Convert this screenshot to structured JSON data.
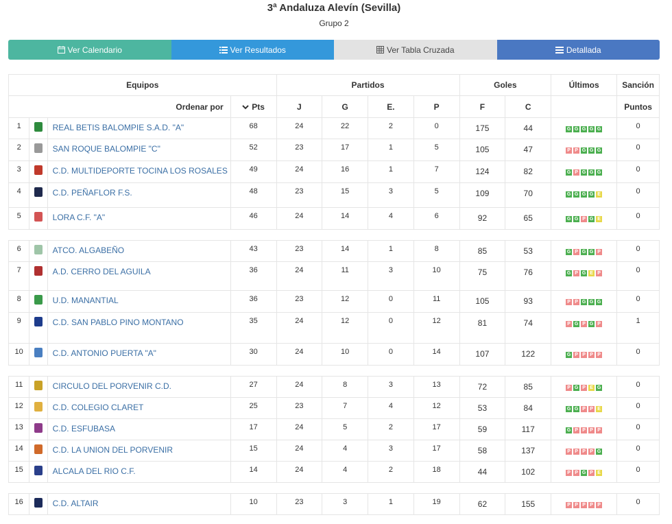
{
  "header": {
    "title": "3ª Andaluza Alevín (Sevilla)",
    "subtitle": "Grupo 2"
  },
  "buttons": [
    {
      "label": "Ver Calendario",
      "icon": "calendar-icon"
    },
    {
      "label": "Ver Resultados",
      "icon": "list-icon"
    },
    {
      "label": "Ver Tabla Cruzada",
      "icon": "grid-icon"
    },
    {
      "label": "Detallada",
      "icon": "detail-list-icon"
    }
  ],
  "table": {
    "groups": {
      "equipos": "Equipos",
      "partidos": "Partidos",
      "goles": "Goles",
      "ultimos": "Últimos",
      "sancion": "Sanción"
    },
    "cols": {
      "ordenar": "Ordenar por",
      "pts": "Pts",
      "j": "J",
      "g": "G",
      "e": "E.",
      "p": "P",
      "f": "F",
      "c": "C",
      "puntos": "Puntos"
    },
    "rows": [
      {
        "pos": "1",
        "team": "REAL BETIS BALOMPIE S.A.D. \"A\"",
        "pts": "68",
        "j": "24",
        "g": "22",
        "e": "2",
        "p": "0",
        "f": "175",
        "c": "44",
        "last": [
          "G",
          "G",
          "G",
          "G",
          "G"
        ],
        "san": "0",
        "crest": "#2e8b3e"
      },
      {
        "pos": "2",
        "team": "SAN ROQUE BALOMPIE \"C\"",
        "pts": "52",
        "j": "23",
        "g": "17",
        "e": "1",
        "p": "5",
        "f": "105",
        "c": "47",
        "last": [
          "P",
          "P",
          "G",
          "G",
          "G"
        ],
        "san": "0",
        "crest": "#999999"
      },
      {
        "pos": "3",
        "team": "C.D. MULTIDEPORTE TOCINA LOS ROSALES",
        "pts": "49",
        "j": "24",
        "g": "16",
        "e": "1",
        "p": "7",
        "f": "124",
        "c": "82",
        "last": [
          "G",
          "P",
          "G",
          "G",
          "G"
        ],
        "san": "0",
        "crest": "#c0392b"
      },
      {
        "pos": "4",
        "team": "C.D. PEÑAFLOR F.S.",
        "pts": "48",
        "j": "23",
        "g": "15",
        "e": "3",
        "p": "5",
        "f": "109",
        "c": "70",
        "last": [
          "G",
          "G",
          "G",
          "G",
          "E"
        ],
        "san": "0",
        "crest": "#1f2a4d"
      },
      {
        "pos": "5",
        "team": "LORA C.F. \"A\"",
        "pts": "46",
        "j": "24",
        "g": "14",
        "e": "4",
        "p": "6",
        "f": "92",
        "c": "65",
        "last": [
          "G",
          "G",
          "P",
          "G",
          "E"
        ],
        "san": "0",
        "crest": "#d35454"
      },
      {
        "sep": true
      },
      {
        "pos": "6",
        "team": "ATCO. ALGABEÑO",
        "pts": "43",
        "j": "23",
        "g": "14",
        "e": "1",
        "p": "8",
        "f": "85",
        "c": "53",
        "last": [
          "G",
          "P",
          "G",
          "G",
          "P"
        ],
        "san": "0",
        "crest": "#9fc5a8"
      },
      {
        "pos": "7",
        "team": "A.D. CERRO DEL AGUILA",
        "pts": "36",
        "j": "24",
        "g": "11",
        "e": "3",
        "p": "10",
        "f": "75",
        "c": "76",
        "last": [
          "G",
          "P",
          "G",
          "E",
          "P"
        ],
        "san": "0",
        "crest": "#b03030"
      },
      {
        "pos": "8",
        "team": "U.D. MANANTIAL",
        "pts": "36",
        "j": "23",
        "g": "12",
        "e": "0",
        "p": "11",
        "f": "105",
        "c": "93",
        "last": [
          "P",
          "P",
          "G",
          "G",
          "G"
        ],
        "san": "0",
        "crest": "#3a9a4a"
      },
      {
        "pos": "9",
        "team": "C.D. SAN PABLO PINO MONTANO",
        "pts": "35",
        "j": "24",
        "g": "12",
        "e": "0",
        "p": "12",
        "f": "81",
        "c": "74",
        "last": [
          "P",
          "G",
          "P",
          "G",
          "P"
        ],
        "san": "1",
        "crest": "#1e3c8c"
      },
      {
        "pos": "10",
        "team": "C.D. ANTONIO PUERTA \"A\"",
        "pts": "30",
        "j": "24",
        "g": "10",
        "e": "0",
        "p": "14",
        "f": "107",
        "c": "122",
        "last": [
          "G",
          "P",
          "P",
          "P",
          "P"
        ],
        "san": "0",
        "crest": "#4a7fc1"
      },
      {
        "sep": true
      },
      {
        "pos": "11",
        "team": "CIRCULO DEL PORVENIR C.D.",
        "pts": "27",
        "j": "24",
        "g": "8",
        "e": "3",
        "p": "13",
        "f": "72",
        "c": "85",
        "last": [
          "P",
          "G",
          "P",
          "E",
          "G"
        ],
        "san": "0",
        "crest": "#c9a227"
      },
      {
        "pos": "12",
        "team": "C.D. COLEGIO CLARET",
        "pts": "25",
        "j": "23",
        "g": "7",
        "e": "4",
        "p": "12",
        "f": "53",
        "c": "84",
        "last": [
          "G",
          "G",
          "P",
          "P",
          "E"
        ],
        "san": "0",
        "crest": "#e0b040"
      },
      {
        "pos": "13",
        "team": "C.D. ESFUBASA",
        "pts": "17",
        "j": "24",
        "g": "5",
        "e": "2",
        "p": "17",
        "f": "59",
        "c": "117",
        "last": [
          "G",
          "P",
          "P",
          "P",
          "P"
        ],
        "san": "0",
        "crest": "#8e3b8a"
      },
      {
        "pos": "14",
        "team": "C.D. LA UNION DEL PORVENIR",
        "pts": "15",
        "j": "24",
        "g": "4",
        "e": "3",
        "p": "17",
        "f": "58",
        "c": "137",
        "last": [
          "P",
          "P",
          "P",
          "P",
          "G"
        ],
        "san": "0",
        "crest": "#d06a2a"
      },
      {
        "pos": "15",
        "team": "ALCALA DEL RIO C.F.",
        "pts": "14",
        "j": "24",
        "g": "4",
        "e": "2",
        "p": "18",
        "f": "44",
        "c": "102",
        "last": [
          "P",
          "P",
          "G",
          "P",
          "E"
        ],
        "san": "0",
        "crest": "#2a3f8a"
      },
      {
        "sep": true
      },
      {
        "pos": "16",
        "team": "C.D. ALTAIR",
        "pts": "10",
        "j": "23",
        "g": "3",
        "e": "1",
        "p": "19",
        "f": "62",
        "c": "155",
        "last": [
          "P",
          "P",
          "P",
          "P",
          "P"
        ],
        "san": "0",
        "crest": "#1c2b5a"
      }
    ]
  }
}
